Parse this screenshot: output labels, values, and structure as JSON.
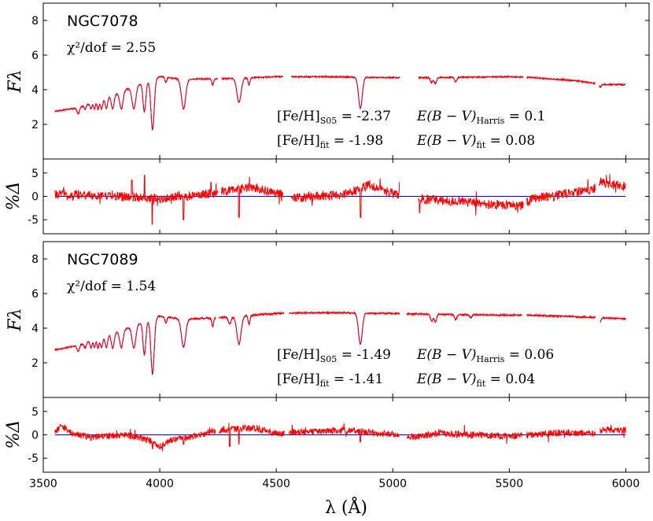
{
  "colors": {
    "model": "#0000ff",
    "observed": "#ff0000",
    "zero_line": "#0000ff",
    "axes": "#000000"
  },
  "x_axis": {
    "label": "λ (Å)",
    "range": [
      3500,
      6100
    ],
    "ticks": [
      3500,
      4000,
      4500,
      5000,
      5500,
      6000
    ]
  },
  "chart_data": [
    {
      "type": "line",
      "panel": "spectrum",
      "title": "NGC7078",
      "chi2_label": "χ²/dof = 2.55",
      "ylabel": "Fλ",
      "ylim": [
        0,
        9
      ],
      "yticks": [
        2,
        4,
        6,
        8
      ],
      "annotations": [
        "[Fe/H]S05 = -2.37    E(B − V)Harris = 0.1",
        "[Fe/H]fit  = -1.98    E(B − V)fit = 0.08"
      ],
      "annotation_parts": [
        {
          "feh": "[Fe/H]",
          "feh_sub": "S05",
          "feh_val": " = -2.37",
          "ebv": "E(B − V)",
          "ebv_sub": "Harris",
          "ebv_val": " = 0.1"
        },
        {
          "feh": "[Fe/H]",
          "feh_sub": "fit",
          "feh_val": "  = -1.98",
          "ebv": "E(B − V)",
          "ebv_sub": "fit",
          "ebv_val": " = 0.08"
        }
      ],
      "series": [
        {
          "name": "observed",
          "color": "#ff0000"
        },
        {
          "name": "model",
          "color": "#0000ff"
        }
      ],
      "seed": 7078,
      "segments": [
        [
          3550,
          4250
        ],
        [
          4265,
          4530
        ],
        [
          4565,
          5030
        ],
        [
          5110,
          5560
        ],
        [
          5575,
          5870
        ],
        [
          5885,
          6000
        ]
      ],
      "anchors": [
        [
          3550,
          2.75
        ],
        [
          3650,
          2.95
        ],
        [
          3800,
          3.7
        ],
        [
          3900,
          4.25
        ],
        [
          4000,
          4.75
        ],
        [
          4100,
          4.6
        ],
        [
          4300,
          4.65
        ],
        [
          4500,
          4.75
        ],
        [
          4700,
          4.75
        ],
        [
          5000,
          4.7
        ],
        [
          5200,
          4.7
        ],
        [
          5500,
          4.75
        ],
        [
          5600,
          4.7
        ],
        [
          5800,
          4.5
        ],
        [
          5900,
          4.3
        ],
        [
          6000,
          4.3
        ]
      ],
      "lines": [
        [
          3650,
          0.35,
          5
        ],
        [
          3680,
          0.25,
          4
        ],
        [
          3705,
          0.35,
          4
        ],
        [
          3720,
          0.4,
          4
        ],
        [
          3735,
          0.5,
          4
        ],
        [
          3750,
          0.55,
          5
        ],
        [
          3771,
          0.65,
          5
        ],
        [
          3798,
          0.8,
          6
        ],
        [
          3835,
          1.0,
          7
        ],
        [
          3889,
          1.3,
          8
        ],
        [
          3934,
          1.7,
          6
        ],
        [
          3969,
          2.9,
          7
        ],
        [
          4026,
          0.3,
          4
        ],
        [
          4102,
          1.7,
          9
        ],
        [
          4227,
          0.35,
          4
        ],
        [
          4340,
          1.4,
          9
        ],
        [
          4383,
          0.4,
          4
        ],
        [
          4861,
          1.8,
          8
        ],
        [
          5167,
          0.3,
          5
        ],
        [
          5183,
          0.35,
          5
        ],
        [
          5270,
          0.25,
          5
        ],
        [
          5890,
          0.15,
          5
        ]
      ],
      "noise": 0.05
    },
    {
      "type": "line",
      "panel": "residual",
      "ylabel": "%Δ",
      "ylim": [
        -8,
        8
      ],
      "yticks": [
        -5,
        0,
        5
      ],
      "series": [
        {
          "name": "residual",
          "color": "#ff0000"
        },
        {
          "name": "zero",
          "color": "#0000ff",
          "values": [
            0,
            0
          ]
        }
      ],
      "seed": 1707,
      "segments": [
        [
          3550,
          4250
        ],
        [
          4265,
          4530
        ],
        [
          4565,
          5030
        ],
        [
          5110,
          5560
        ],
        [
          5575,
          5870
        ],
        [
          5885,
          6000
        ]
      ],
      "anchors": [
        [
          3550,
          0.5
        ],
        [
          3700,
          0.3
        ],
        [
          3800,
          0.0
        ],
        [
          3900,
          -0.2
        ],
        [
          4000,
          -0.5
        ],
        [
          4150,
          0.2
        ],
        [
          4300,
          1.2
        ],
        [
          4400,
          2.0
        ],
        [
          4500,
          0.5
        ],
        [
          4600,
          -0.3
        ],
        [
          4800,
          0.5
        ],
        [
          4850,
          1.5
        ],
        [
          4900,
          2.5
        ],
        [
          5030,
          0.0
        ],
        [
          5110,
          -0.5
        ],
        [
          5300,
          -1.2
        ],
        [
          5450,
          -1.8
        ],
        [
          5550,
          -2.0
        ],
        [
          5600,
          -0.5
        ],
        [
          5750,
          0.6
        ],
        [
          5860,
          1.3
        ],
        [
          5890,
          3.2
        ],
        [
          5950,
          2.5
        ],
        [
          6000,
          2.0
        ]
      ],
      "noise": 1.0,
      "spikes": [
        [
          3935,
          4.5
        ],
        [
          3968,
          -6.0
        ],
        [
          4102,
          -5.0
        ],
        [
          4340,
          -4.5
        ],
        [
          4861,
          5.0
        ],
        [
          4862,
          -4.5
        ],
        [
          5030,
          3.0
        ],
        [
          5115,
          -3.5
        ],
        [
          4220,
          3.0
        ],
        [
          3880,
          3.5
        ]
      ]
    },
    {
      "type": "line",
      "panel": "spectrum",
      "title": "NGC7089",
      "chi2_label": "χ²/dof = 1.54",
      "ylabel": "Fλ",
      "ylim": [
        0,
        9
      ],
      "yticks": [
        2,
        4,
        6,
        8
      ],
      "annotations": [
        "[Fe/H]S05 = -1.49    E(B − V)Harris = 0.06",
        "[Fe/H]fit  = -1.41    E(B − V)fit = 0.04"
      ],
      "annotation_parts": [
        {
          "feh": "[Fe/H]",
          "feh_sub": "S05",
          "feh_val": " = -1.49",
          "ebv": "E(B − V)",
          "ebv_sub": "Harris",
          "ebv_val": " = 0.06"
        },
        {
          "feh": "[Fe/H]",
          "feh_sub": "fit",
          "feh_val": "  = -1.41",
          "ebv": "E(B − V)",
          "ebv_sub": "fit",
          "ebv_val": " = 0.04"
        }
      ],
      "series": [
        {
          "name": "observed",
          "color": "#ff0000"
        },
        {
          "name": "model",
          "color": "#0000ff"
        }
      ],
      "seed": 7089,
      "segments": [
        [
          3550,
          4240
        ],
        [
          4255,
          4535
        ],
        [
          4555,
          5030
        ],
        [
          5060,
          5555
        ],
        [
          5575,
          5870
        ],
        [
          5890,
          6000
        ]
      ],
      "anchors": [
        [
          3550,
          2.75
        ],
        [
          3650,
          3.0
        ],
        [
          3800,
          3.7
        ],
        [
          3900,
          4.2
        ],
        [
          4000,
          4.7
        ],
        [
          4100,
          4.5
        ],
        [
          4300,
          4.65
        ],
        [
          4500,
          4.85
        ],
        [
          4700,
          4.9
        ],
        [
          5000,
          4.85
        ],
        [
          5200,
          4.8
        ],
        [
          5500,
          4.75
        ],
        [
          5600,
          4.75
        ],
        [
          5800,
          4.65
        ],
        [
          5900,
          4.6
        ],
        [
          6000,
          4.55
        ]
      ],
      "lines": [
        [
          3650,
          0.35,
          5
        ],
        [
          3680,
          0.3,
          4
        ],
        [
          3705,
          0.4,
          4
        ],
        [
          3720,
          0.45,
          4
        ],
        [
          3735,
          0.55,
          4
        ],
        [
          3750,
          0.6,
          5
        ],
        [
          3771,
          0.7,
          5
        ],
        [
          3798,
          0.85,
          6
        ],
        [
          3835,
          1.0,
          7
        ],
        [
          3889,
          1.3,
          8
        ],
        [
          3934,
          1.9,
          6
        ],
        [
          3969,
          3.2,
          7
        ],
        [
          4026,
          0.35,
          4
        ],
        [
          4102,
          1.6,
          9
        ],
        [
          4227,
          0.5,
          4
        ],
        [
          4300,
          0.4,
          6
        ],
        [
          4340,
          1.6,
          9
        ],
        [
          4383,
          0.5,
          4
        ],
        [
          4861,
          1.8,
          8
        ],
        [
          5167,
          0.4,
          5
        ],
        [
          5183,
          0.45,
          5
        ],
        [
          5270,
          0.3,
          5
        ],
        [
          5335,
          0.2,
          5
        ],
        [
          5890,
          0.2,
          5
        ]
      ],
      "noise": 0.06
    },
    {
      "type": "line",
      "panel": "residual",
      "ylabel": "%Δ",
      "ylim": [
        -8,
        8
      ],
      "yticks": [
        -5,
        0,
        5
      ],
      "series": [
        {
          "name": "residual",
          "color": "#ff0000"
        },
        {
          "name": "zero",
          "color": "#0000ff",
          "values": [
            0,
            0
          ]
        }
      ],
      "seed": 1708,
      "segments": [
        [
          3550,
          4240
        ],
        [
          4255,
          4535
        ],
        [
          4555,
          5030
        ],
        [
          5060,
          5555
        ],
        [
          5575,
          5870
        ],
        [
          5890,
          6000
        ]
      ],
      "anchors": [
        [
          3550,
          0.5
        ],
        [
          3580,
          2.0
        ],
        [
          3620,
          0.5
        ],
        [
          3700,
          -0.5
        ],
        [
          3850,
          0.0
        ],
        [
          3950,
          -1.0
        ],
        [
          4000,
          -2.5
        ],
        [
          4050,
          -1.0
        ],
        [
          4150,
          -0.3
        ],
        [
          4250,
          1.0
        ],
        [
          4400,
          1.5
        ],
        [
          4500,
          0.3
        ],
        [
          4600,
          0.5
        ],
        [
          4800,
          1.0
        ],
        [
          4900,
          0.5
        ],
        [
          5030,
          0.0
        ],
        [
          5100,
          -0.5
        ],
        [
          5200,
          0.3
        ],
        [
          5350,
          0.0
        ],
        [
          5500,
          -0.3
        ],
        [
          5700,
          0.4
        ],
        [
          5870,
          0.3
        ],
        [
          5890,
          1.0
        ],
        [
          6000,
          1.0
        ]
      ],
      "noise": 0.7,
      "spikes": [
        [
          3969,
          -3.0
        ],
        [
          4102,
          -2.0
        ],
        [
          4300,
          -2.5
        ],
        [
          4340,
          -2.0
        ],
        [
          4861,
          -1.5
        ]
      ]
    }
  ]
}
